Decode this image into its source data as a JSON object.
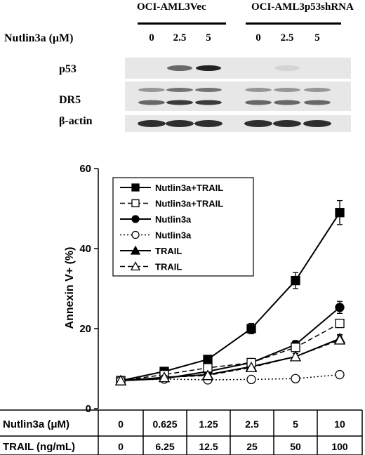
{
  "blot": {
    "group_labels": [
      "OCI-AML3Vec",
      "OCI-AML3p53shRNA"
    ],
    "treatment_label": "Nutlin3a (μM)",
    "concentrations": [
      "0",
      "2.5",
      "5",
      "0",
      "2.5",
      "5"
    ],
    "row_labels": [
      "p53",
      "DR5",
      "β-actin"
    ]
  },
  "chart_data": {
    "type": "line",
    "ylabel": "Annexin V+ (%)",
    "ylim": [
      0,
      60
    ],
    "yticks": [
      0,
      20,
      40,
      60
    ],
    "categories": [
      "0",
      "0.625",
      "1.25",
      "2.5",
      "5",
      "10"
    ],
    "series": [
      {
        "name": "Nutlin3a+TRAIL",
        "marker": "square",
        "fill": "filled",
        "line": "solid",
        "values": [
          7,
          9.3,
          12.3,
          20,
          32,
          49
        ],
        "errors": [
          0.5,
          0.8,
          1,
          1.3,
          2,
          3
        ]
      },
      {
        "name": "Nutlin3a+TRAIL",
        "marker": "square",
        "fill": "open",
        "line": "dashed",
        "values": [
          7,
          8.5,
          10.2,
          11.5,
          15.3,
          21.3
        ],
        "errors": [
          0.4,
          0.5,
          0.6,
          0.7,
          0.8,
          1
        ]
      },
      {
        "name": "Nutlin3a",
        "marker": "circle",
        "fill": "filled",
        "line": "solid",
        "values": [
          7,
          7.5,
          9.3,
          11.5,
          16,
          25.3
        ],
        "errors": [
          0.4,
          0.5,
          0.6,
          0.7,
          1,
          1.5
        ]
      },
      {
        "name": "Nutlin3a",
        "marker": "circle",
        "fill": "open",
        "line": "dotted",
        "values": [
          7,
          7.4,
          7.2,
          7.3,
          7.5,
          8.5
        ],
        "errors": [
          0.3,
          0.4,
          0.4,
          0.4,
          0.5,
          0.8
        ]
      },
      {
        "name": "TRAIL",
        "marker": "triangle",
        "fill": "filled",
        "line": "solid",
        "values": [
          7,
          7.8,
          8.5,
          10.5,
          13,
          17.5
        ],
        "errors": [
          0.3,
          0.4,
          0.5,
          0.6,
          0.8,
          1
        ]
      },
      {
        "name": "TRAIL",
        "marker": "triangle",
        "fill": "open",
        "line": "dashed",
        "values": [
          7,
          7.8,
          8.3,
          10.3,
          13,
          17.2
        ],
        "errors": [
          0.3,
          0.4,
          0.5,
          0.6,
          0.8,
          1
        ]
      }
    ],
    "table": {
      "rows": [
        {
          "label": "Nutlin3a (μM)",
          "values": [
            "0",
            "0.625",
            "1.25",
            "2.5",
            "5",
            "10"
          ]
        },
        {
          "label": "TRAIL (ng/mL)",
          "values": [
            "0",
            "6.25",
            "12.5",
            "25",
            "50",
            "100"
          ]
        }
      ]
    }
  }
}
